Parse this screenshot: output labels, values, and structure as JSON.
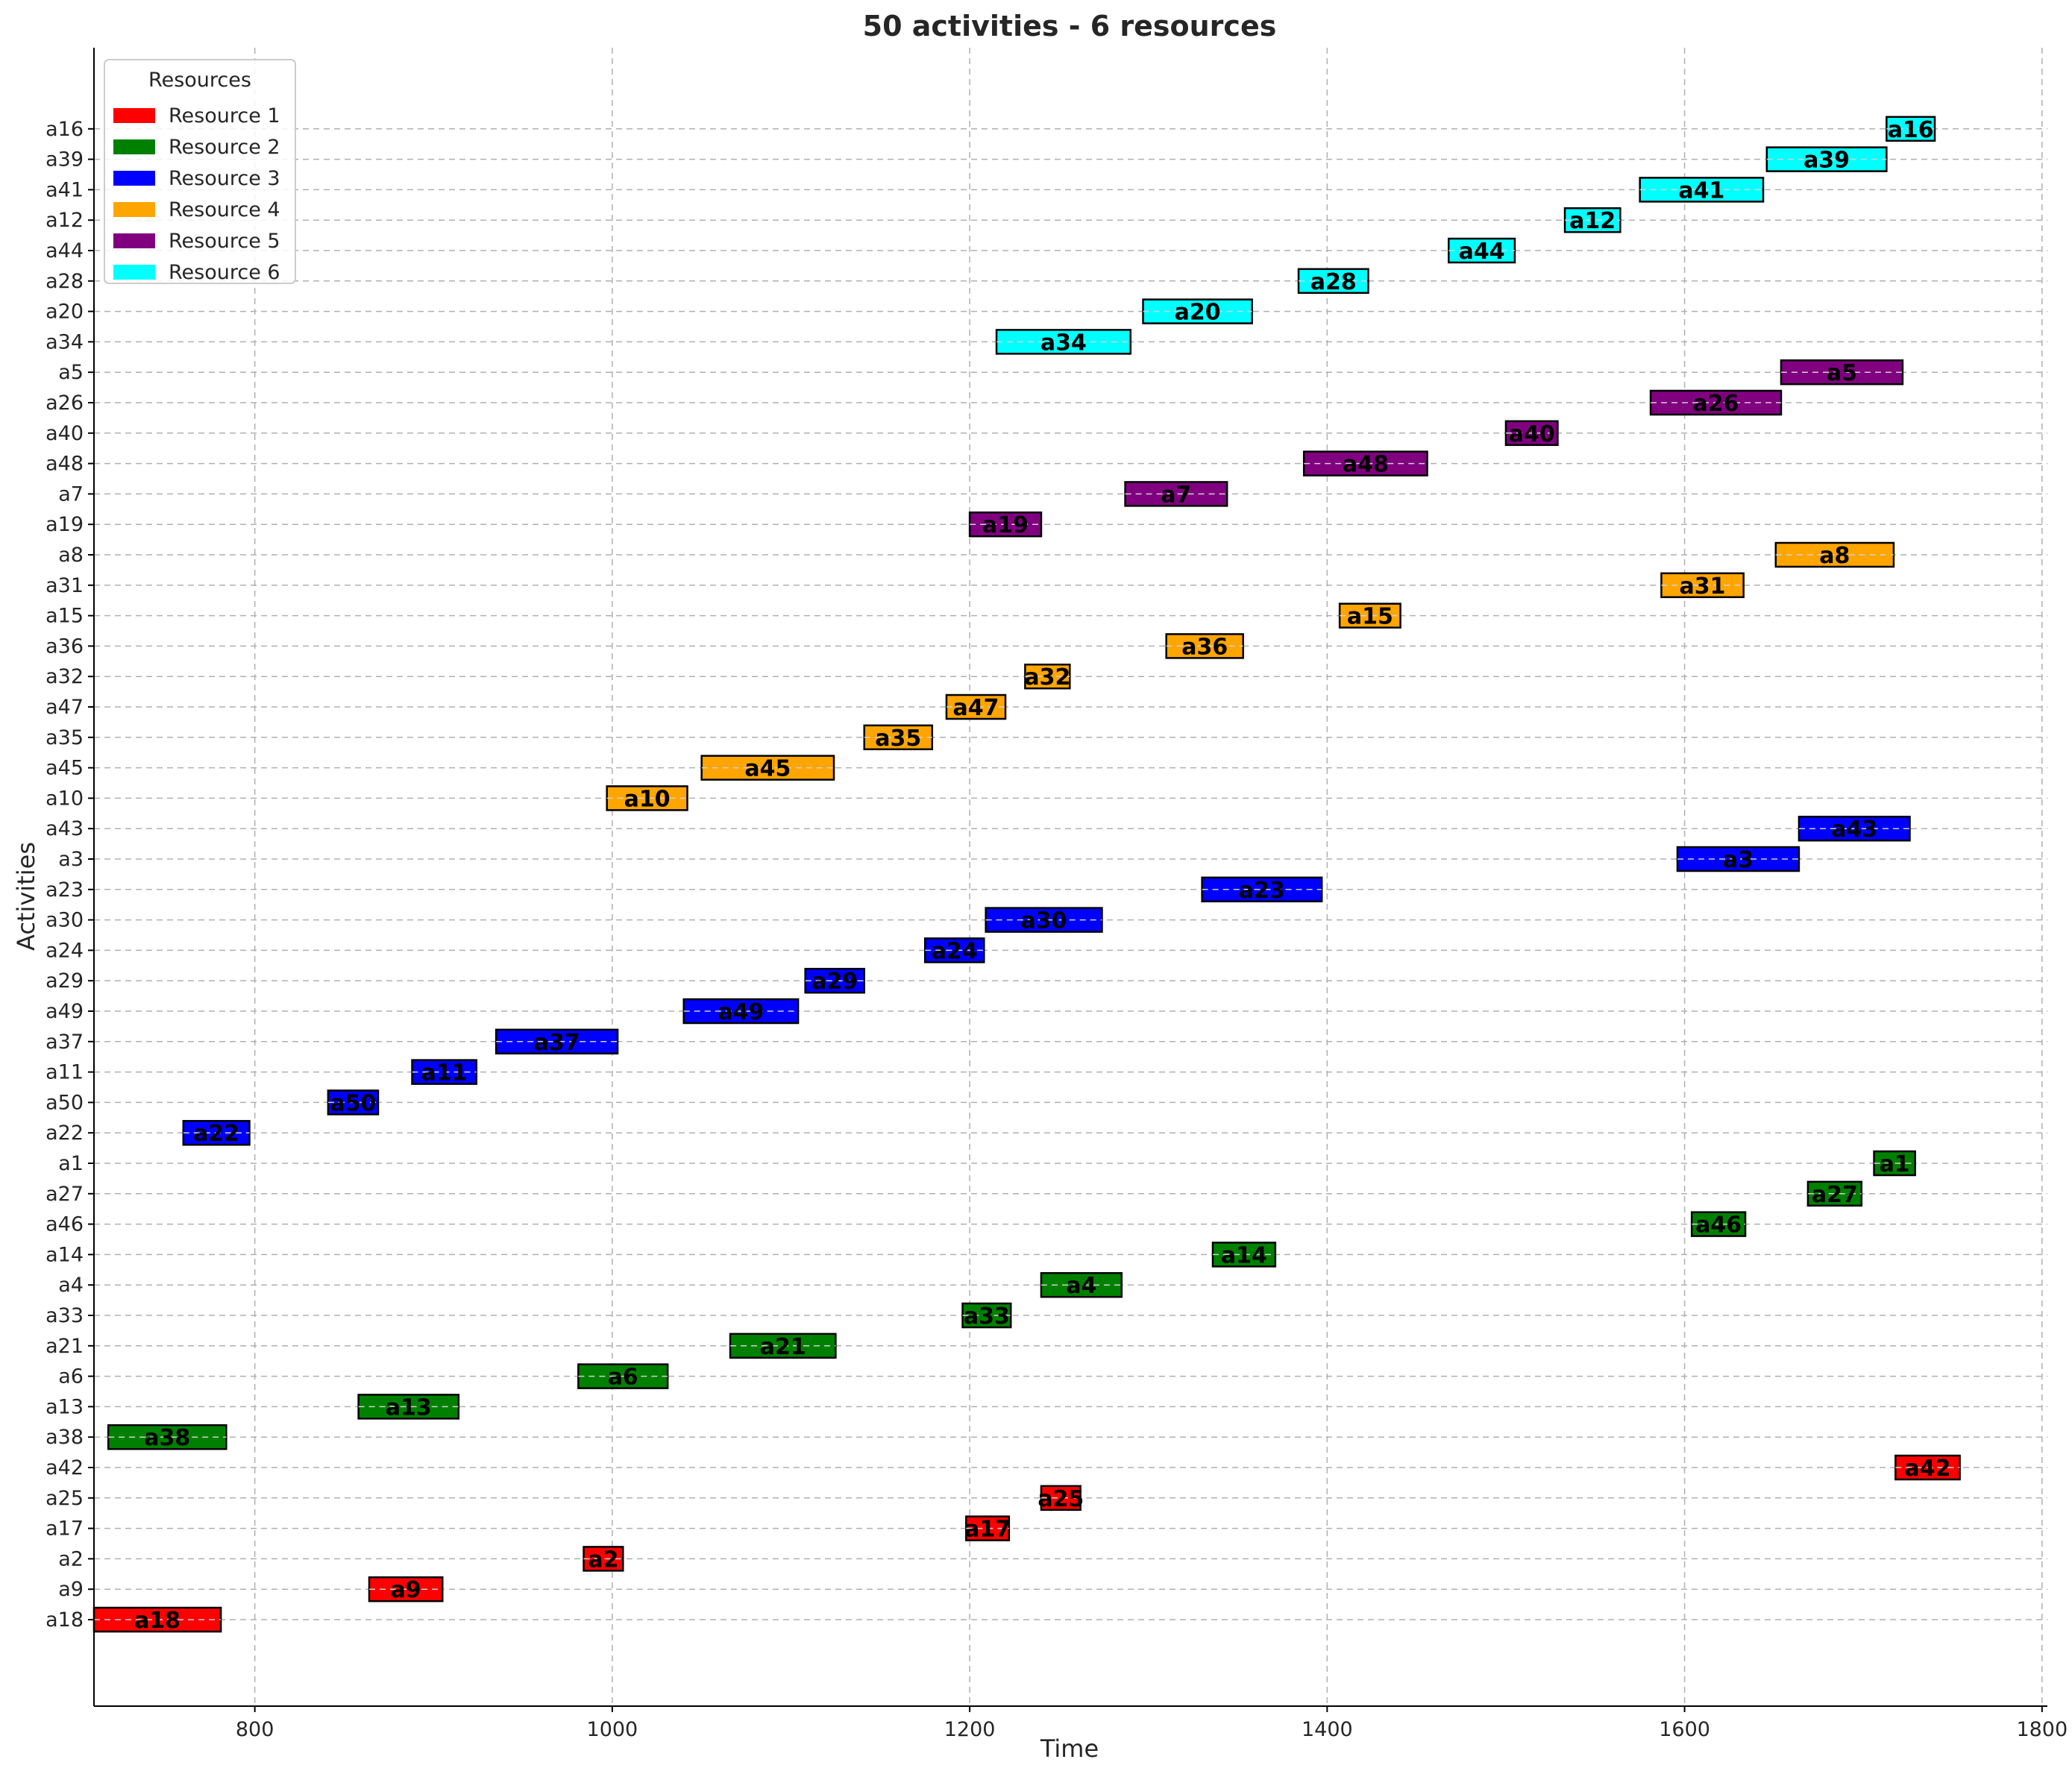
{
  "chart_data": {
    "type": "gantt",
    "title": "50 activities - 6 resources",
    "xlabel": "Time",
    "ylabel": "Activities",
    "xlim": [
      710,
      1803
    ],
    "xticks": [
      800,
      1000,
      1200,
      1400,
      1600,
      1800
    ],
    "grid": true,
    "legend": {
      "title": "Resources",
      "placement": "top-left",
      "entries": [
        {
          "name": "Resource 1",
          "color": "#ff0000"
        },
        {
          "name": "Resource 2",
          "color": "#008000"
        },
        {
          "name": "Resource 3",
          "color": "#0000ff"
        },
        {
          "name": "Resource 4",
          "color": "#ffa500"
        },
        {
          "name": "Resource 5",
          "color": "#800080"
        },
        {
          "name": "Resource 6",
          "color": "#00ffff"
        }
      ]
    },
    "activities": [
      {
        "name": "a18",
        "resource": 1,
        "start": 710,
        "end": 781
      },
      {
        "name": "a9",
        "resource": 1,
        "start": 864,
        "end": 905
      },
      {
        "name": "a2",
        "resource": 1,
        "start": 984,
        "end": 1006
      },
      {
        "name": "a17",
        "resource": 1,
        "start": 1198,
        "end": 1222
      },
      {
        "name": "a25",
        "resource": 1,
        "start": 1240,
        "end": 1262
      },
      {
        "name": "a42",
        "resource": 1,
        "start": 1718,
        "end": 1754
      },
      {
        "name": "a38",
        "resource": 2,
        "start": 718,
        "end": 784
      },
      {
        "name": "a13",
        "resource": 2,
        "start": 858,
        "end": 914
      },
      {
        "name": "a6",
        "resource": 2,
        "start": 981,
        "end": 1031
      },
      {
        "name": "a21",
        "resource": 2,
        "start": 1066,
        "end": 1125
      },
      {
        "name": "a33",
        "resource": 2,
        "start": 1196,
        "end": 1223
      },
      {
        "name": "a4",
        "resource": 2,
        "start": 1240,
        "end": 1285
      },
      {
        "name": "a14",
        "resource": 2,
        "start": 1336,
        "end": 1371
      },
      {
        "name": "a46",
        "resource": 2,
        "start": 1604,
        "end": 1634
      },
      {
        "name": "a27",
        "resource": 2,
        "start": 1669,
        "end": 1699
      },
      {
        "name": "a1",
        "resource": 2,
        "start": 1706,
        "end": 1729
      },
      {
        "name": "a22",
        "resource": 3,
        "start": 760,
        "end": 797
      },
      {
        "name": "a50",
        "resource": 3,
        "start": 841,
        "end": 869
      },
      {
        "name": "a11",
        "resource": 3,
        "start": 888,
        "end": 924
      },
      {
        "name": "a37",
        "resource": 3,
        "start": 935,
        "end": 1003
      },
      {
        "name": "a49",
        "resource": 3,
        "start": 1040,
        "end": 1104
      },
      {
        "name": "a29",
        "resource": 3,
        "start": 1108,
        "end": 1141
      },
      {
        "name": "a24",
        "resource": 3,
        "start": 1175,
        "end": 1208
      },
      {
        "name": "a30",
        "resource": 3,
        "start": 1209,
        "end": 1274
      },
      {
        "name": "a23",
        "resource": 3,
        "start": 1330,
        "end": 1397
      },
      {
        "name": "a3",
        "resource": 3,
        "start": 1596,
        "end": 1664
      },
      {
        "name": "a43",
        "resource": 3,
        "start": 1664,
        "end": 1726
      },
      {
        "name": "a10",
        "resource": 4,
        "start": 997,
        "end": 1042
      },
      {
        "name": "a45",
        "resource": 4,
        "start": 1050,
        "end": 1124
      },
      {
        "name": "a35",
        "resource": 4,
        "start": 1141,
        "end": 1179
      },
      {
        "name": "a47",
        "resource": 4,
        "start": 1187,
        "end": 1220
      },
      {
        "name": "a32",
        "resource": 4,
        "start": 1231,
        "end": 1256
      },
      {
        "name": "a36",
        "resource": 4,
        "start": 1310,
        "end": 1353
      },
      {
        "name": "a15",
        "resource": 4,
        "start": 1407,
        "end": 1441
      },
      {
        "name": "a31",
        "resource": 4,
        "start": 1587,
        "end": 1633
      },
      {
        "name": "a8",
        "resource": 4,
        "start": 1651,
        "end": 1717
      },
      {
        "name": "a19",
        "resource": 5,
        "start": 1200,
        "end": 1240
      },
      {
        "name": "a7",
        "resource": 5,
        "start": 1287,
        "end": 1344
      },
      {
        "name": "a48",
        "resource": 5,
        "start": 1387,
        "end": 1456
      },
      {
        "name": "a40",
        "resource": 5,
        "start": 1500,
        "end": 1529
      },
      {
        "name": "a26",
        "resource": 5,
        "start": 1581,
        "end": 1654
      },
      {
        "name": "a5",
        "resource": 5,
        "start": 1654,
        "end": 1722
      },
      {
        "name": "a34",
        "resource": 6,
        "start": 1215,
        "end": 1290
      },
      {
        "name": "a20",
        "resource": 6,
        "start": 1297,
        "end": 1358
      },
      {
        "name": "a28",
        "resource": 6,
        "start": 1384,
        "end": 1423
      },
      {
        "name": "a44",
        "resource": 6,
        "start": 1468,
        "end": 1505
      },
      {
        "name": "a12",
        "resource": 6,
        "start": 1533,
        "end": 1564
      },
      {
        "name": "a41",
        "resource": 6,
        "start": 1575,
        "end": 1644
      },
      {
        "name": "a39",
        "resource": 6,
        "start": 1646,
        "end": 1713
      },
      {
        "name": "a16",
        "resource": 6,
        "start": 1713,
        "end": 1740
      }
    ]
  }
}
